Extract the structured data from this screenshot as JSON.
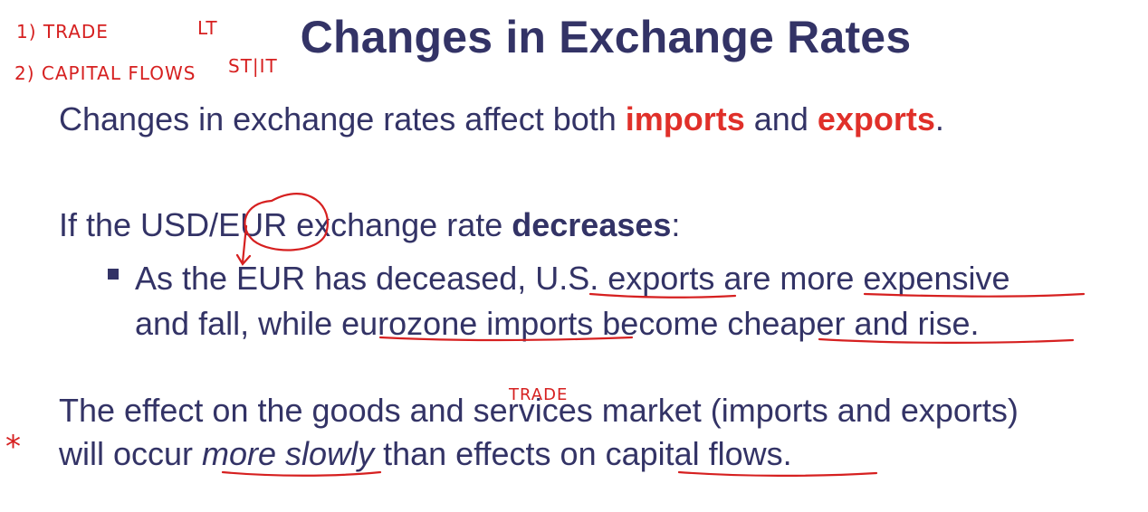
{
  "slide": {
    "title": "Changes in Exchange Rates",
    "p1": {
      "pre": "Changes in exchange rates affect both ",
      "imports": "imports",
      "mid": " and ",
      "exports": "exports",
      "end": "."
    },
    "p2": {
      "pre": "If the USD/EUR exchange rate ",
      "decreases": "decreases",
      "end": ":"
    },
    "bullet": {
      "line1": "As the EUR has deceased, U.S. exports are more expensive",
      "line2": "and fall, while eurozone imports become cheaper and rise."
    },
    "p3": {
      "line1": "The effect on the goods and services market (imports and exports)",
      "line2_pre": "will occur ",
      "more_slowly": "more slowly",
      "line2_end": " than effects on capital flows."
    }
  },
  "annotations": {
    "note1": "1) TRADE",
    "note1_tag": "LT",
    "note2": "2) CAPITAL FLOWS",
    "note2_tag": "ST|IT",
    "trade_note": "TRADE",
    "star": "*"
  },
  "colors": {
    "text": "#333366",
    "emphasis": "#e0302a",
    "ink": "#d62020",
    "background": "#ffffff"
  }
}
